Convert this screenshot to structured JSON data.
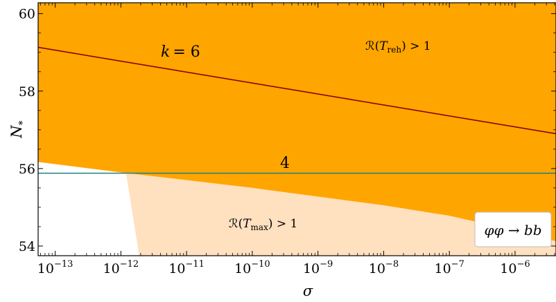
{
  "chart_data": {
    "type": "area",
    "title": "",
    "xlabel": "σ",
    "ylabel": "N",
    "ylabel_subscript": "*",
    "xscale": "log",
    "xlim": [
      5.5e-14,
      4.2e-06
    ],
    "ylim": [
      53.75,
      60.28
    ],
    "grid": false,
    "x_ticks": [
      {
        "value": 1e-13,
        "base": "10",
        "exp": "−13"
      },
      {
        "value": 1e-12,
        "base": "10",
        "exp": "−12"
      },
      {
        "value": 1e-11,
        "base": "10",
        "exp": "−11"
      },
      {
        "value": 1e-10,
        "base": "10",
        "exp": "−10"
      },
      {
        "value": 1e-09,
        "base": "10",
        "exp": "−9"
      },
      {
        "value": 1e-08,
        "base": "10",
        "exp": "−8"
      },
      {
        "value": 1e-07,
        "base": "10",
        "exp": "−7"
      },
      {
        "value": 1e-06,
        "base": "10",
        "exp": "−6"
      }
    ],
    "y_ticks": [
      54,
      56,
      58,
      60
    ],
    "regions": [
      {
        "name": "R(T_reh) > 1",
        "color": "#ffa500",
        "upper": "top",
        "lower_points": [
          [
            5.5e-14,
            56.17
          ],
          [
            1e-12,
            55.9
          ],
          [
            1e-10,
            55.5
          ],
          [
            1e-08,
            55.05
          ],
          [
            1e-07,
            54.78
          ],
          [
            1e-06,
            54.4
          ],
          [
            4.2e-06,
            54.12
          ]
        ]
      },
      {
        "name": "R(T_max) > 1",
        "color": "#ffe0bf",
        "points": [
          [
            1.2e-12,
            55.88
          ],
          [
            1.9e-12,
            53.75
          ],
          [
            4.2e-06,
            53.75
          ],
          [
            4.2e-06,
            54.12
          ],
          [
            1e-06,
            54.4
          ],
          [
            1e-07,
            54.78
          ],
          [
            1e-08,
            55.05
          ],
          [
            1e-10,
            55.5
          ],
          [
            1.2e-12,
            55.88
          ]
        ]
      }
    ],
    "series": [
      {
        "name": "k = 6",
        "color": "#8b0000",
        "x": [
          5.5e-14,
          4.2e-06
        ],
        "y": [
          59.13,
          56.9
        ]
      },
      {
        "name": "4",
        "color": "#1f7f7f",
        "x": [
          5.5e-14,
          4.2e-06
        ],
        "y": [
          55.88,
          55.88
        ]
      }
    ],
    "annotations": {
      "k6_lhs": "k",
      "k6_rhs": "= 6",
      "k4": "4",
      "treh_prefix": "ℛ(",
      "treh_var": "T",
      "treh_sub": "reh",
      "treh_suffix": ") > 1",
      "tmax_prefix": "ℛ(",
      "tmax_var": "T",
      "tmax_sub": "max",
      "tmax_suffix": ") > 1"
    },
    "legend_box": {
      "text": "φφ → bb",
      "placement": "bottom-right"
    }
  }
}
